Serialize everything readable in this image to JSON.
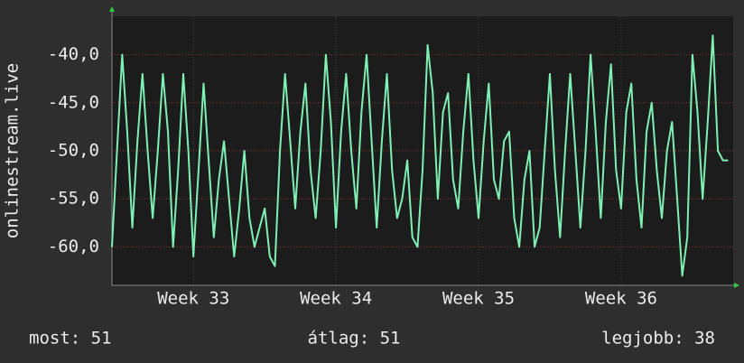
{
  "chart_data": {
    "type": "line",
    "y_label": "onlinestream.live",
    "color": "#7ff0b4",
    "ylim": [
      -64,
      -36
    ],
    "yticks": [
      {
        "value": -40,
        "label": "-40,0"
      },
      {
        "value": -45,
        "label": "-45,0"
      },
      {
        "value": -50,
        "label": "-50,0"
      },
      {
        "value": -55,
        "label": "-55,0"
      },
      {
        "value": -60,
        "label": "-60,0"
      }
    ],
    "xlim": [
      0,
      30.5
    ],
    "xticks": [
      {
        "value": 4,
        "label": "Week 33"
      },
      {
        "value": 11,
        "label": "Week 34"
      },
      {
        "value": 18,
        "label": "Week 35"
      },
      {
        "value": 25,
        "label": "Week 36"
      }
    ],
    "grid": true,
    "x": [
      0,
      0.25,
      0.5,
      0.75,
      1,
      1.25,
      1.5,
      1.75,
      2,
      2.25,
      2.5,
      2.75,
      3,
      3.25,
      3.5,
      3.75,
      4,
      4.25,
      4.5,
      4.75,
      5,
      5.25,
      5.5,
      5.75,
      6,
      6.25,
      6.5,
      6.75,
      7,
      7.25,
      7.5,
      7.75,
      8,
      8.25,
      8.5,
      8.75,
      9,
      9.25,
      9.5,
      9.75,
      10,
      10.25,
      10.5,
      10.75,
      11,
      11.25,
      11.5,
      11.75,
      12,
      12.25,
      12.5,
      12.75,
      13,
      13.25,
      13.5,
      13.75,
      14,
      14.25,
      14.5,
      14.75,
      15,
      15.25,
      15.5,
      15.75,
      16,
      16.25,
      16.5,
      16.75,
      17,
      17.25,
      17.5,
      17.75,
      18,
      18.25,
      18.5,
      18.75,
      19,
      19.25,
      19.5,
      19.75,
      20,
      20.25,
      20.5,
      20.75,
      21,
      21.25,
      21.5,
      21.75,
      22,
      22.25,
      22.5,
      22.75,
      23,
      23.25,
      23.5,
      23.75,
      24,
      24.25,
      24.5,
      24.75,
      25,
      25.25,
      25.5,
      25.75,
      26,
      26.25,
      26.5,
      26.75,
      27,
      27.25,
      27.5,
      27.75,
      28,
      28.25,
      28.5,
      28.75,
      29,
      29.25,
      29.5,
      29.75,
      30,
      30.25
    ],
    "values": [
      -60,
      -50,
      -40,
      -48,
      -58,
      -49,
      -42,
      -50,
      -57,
      -50,
      -42,
      -48,
      -60,
      -52,
      -42,
      -50,
      -61,
      -52,
      -43,
      -51,
      -59,
      -53,
      -49,
      -55,
      -61,
      -56,
      -50,
      -57,
      -60,
      -58,
      -56,
      -61,
      -62,
      -50,
      -42,
      -49,
      -56,
      -48,
      -43,
      -52,
      -57,
      -50,
      -40,
      -47,
      -58,
      -48,
      -42,
      -50,
      -56,
      -46,
      -40,
      -49,
      -58,
      -49,
      -42,
      -52,
      -57,
      -55,
      -51,
      -59,
      -60,
      -52,
      -39,
      -44,
      -55,
      -46,
      -44,
      -53,
      -56,
      -48,
      -42,
      -51,
      -57,
      -49,
      -43,
      -53,
      -55,
      -49,
      -48,
      -57,
      -60,
      -53,
      -50,
      -60,
      -58,
      -50,
      -42,
      -52,
      -59,
      -50,
      -42,
      -50,
      -58,
      -50,
      -40,
      -48,
      -57,
      -47,
      -41,
      -52,
      -56,
      -46,
      -43,
      -53,
      -58,
      -48,
      -45,
      -52,
      -57,
      -50,
      -47,
      -55,
      -63,
      -59,
      -40,
      -46,
      -55,
      -47,
      -38,
      -50,
      -51,
      -51
    ]
  },
  "footer": {
    "current": "most: 51",
    "average": "átlag: 51",
    "best": "legjobb: 38"
  }
}
